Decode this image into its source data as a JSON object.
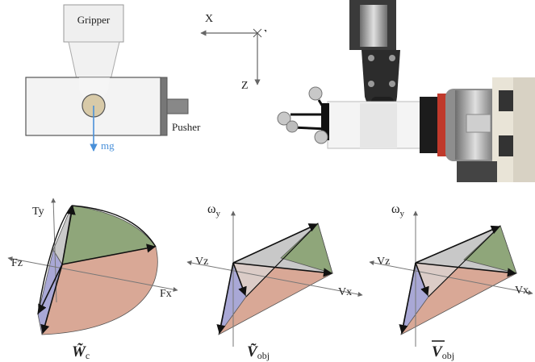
{
  "schematic": {
    "gripper_label": "Gripper",
    "pusher_label": "Pusher",
    "gravity_label": "mg"
  },
  "axes": {
    "x_label": "X",
    "y_label": "Y",
    "z_label": "Z"
  },
  "wrench_plot": {
    "axis_ty": "Ty",
    "axis_fz": "Fz",
    "axis_fx": "Fx",
    "caption_main": "W̃",
    "caption_sub": "c"
  },
  "twist_plot_tilde": {
    "axis_omega": "ω",
    "axis_omega_sub": "y",
    "axis_vz": "Vz",
    "axis_vx": "Vx",
    "caption_main": "Ṽ",
    "caption_sub": "obj"
  },
  "twist_plot_bar": {
    "axis_omega": "ω",
    "axis_omega_sub": "y",
    "axis_vz": "Vz",
    "axis_vx": "Vx",
    "caption_main": "V",
    "caption_sub": "obj"
  },
  "colors": {
    "green_face": "#8fa67a",
    "pink_face": "#d9a896",
    "blue_face": "#a9a8d6",
    "grey_face": "#c9c9c9",
    "gravity_arrow": "#4a90d9"
  }
}
